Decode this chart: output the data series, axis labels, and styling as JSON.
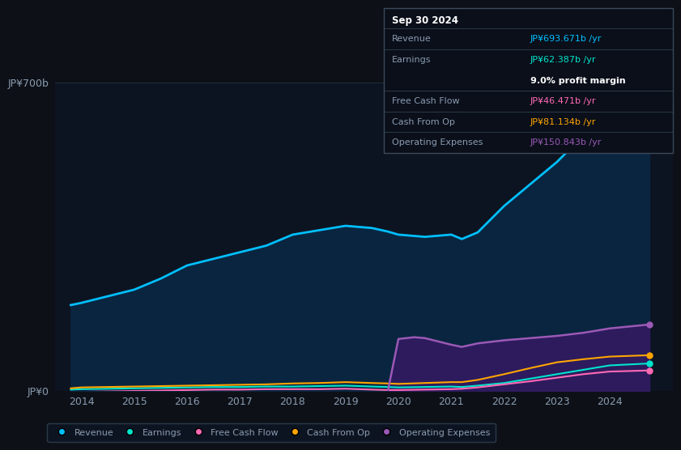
{
  "bg_color": "#0d1117",
  "plot_bg_color": "#0d1421",
  "grid_color": "#1e2a3a",
  "years": [
    2013.8,
    2014,
    2014.5,
    2015,
    2015.5,
    2016,
    2016.5,
    2017,
    2017.5,
    2018,
    2018.5,
    2019,
    2019.5,
    2019.8,
    2020,
    2020.5,
    2021,
    2021.2,
    2021.5,
    2022,
    2022.5,
    2023,
    2023.5,
    2024,
    2024.75
  ],
  "revenue": [
    195,
    200,
    215,
    230,
    255,
    285,
    300,
    315,
    330,
    355,
    365,
    375,
    370,
    362,
    355,
    350,
    355,
    345,
    360,
    420,
    470,
    520,
    580,
    650,
    693.671
  ],
  "earnings": [
    3,
    4,
    5,
    6,
    7,
    8,
    9,
    9,
    10,
    10,
    11,
    12,
    10,
    9,
    8,
    9,
    10,
    9,
    12,
    18,
    28,
    38,
    48,
    58,
    62.387
  ],
  "free_cash_flow": [
    -3,
    -2,
    -1,
    0,
    1,
    2,
    3,
    3,
    4,
    4,
    4,
    5,
    3,
    2,
    2,
    3,
    4,
    5,
    8,
    15,
    22,
    30,
    38,
    44,
    46.471
  ],
  "cash_from_op": [
    6,
    8,
    9,
    10,
    11,
    12,
    13,
    14,
    15,
    17,
    18,
    20,
    18,
    17,
    16,
    18,
    20,
    20,
    25,
    38,
    52,
    65,
    72,
    78,
    81.134
  ],
  "opex_years": [
    2019.8,
    2020,
    2020.3,
    2020.5,
    2021,
    2021.2,
    2021.5,
    2022,
    2022.5,
    2023,
    2023.5,
    2024,
    2024.75
  ],
  "operating_expenses": [
    0,
    118,
    122,
    120,
    105,
    100,
    108,
    115,
    120,
    125,
    132,
    142,
    150.843
  ],
  "revenue_color": "#00bfff",
  "earnings_color": "#00e5cc",
  "free_cash_flow_color": "#ff69b4",
  "cash_from_op_color": "#ffa500",
  "operating_expenses_color": "#9b59b6",
  "revenue_fill": "#0a2540",
  "operating_expenses_fill": "#2d1b5e",
  "ylim": [
    0,
    700
  ],
  "ytick_vals": [
    0,
    700
  ],
  "ytick_labels": [
    "JP¥0",
    "JP¥700b"
  ],
  "xlabel_years": [
    2014,
    2015,
    2016,
    2017,
    2018,
    2019,
    2020,
    2021,
    2022,
    2023,
    2024
  ],
  "info_box": {
    "date": "Sep 30 2024",
    "revenue_label": "Revenue",
    "revenue_val": "JP¥693.671b /yr",
    "earnings_label": "Earnings",
    "earnings_val": "JP¥62.387b /yr",
    "profit_margin": "9.0% profit margin",
    "fcf_label": "Free Cash Flow",
    "fcf_val": "JP¥46.471b /yr",
    "cfo_label": "Cash From Op",
    "cfo_val": "JP¥81.134b /yr",
    "opex_label": "Operating Expenses",
    "opex_val": "JP¥150.843b /yr"
  },
  "legend_labels": [
    "Revenue",
    "Earnings",
    "Free Cash Flow",
    "Cash From Op",
    "Operating Expenses"
  ],
  "legend_colors": [
    "#00bfff",
    "#00e5cc",
    "#ff69b4",
    "#ffa500",
    "#9b59b6"
  ]
}
